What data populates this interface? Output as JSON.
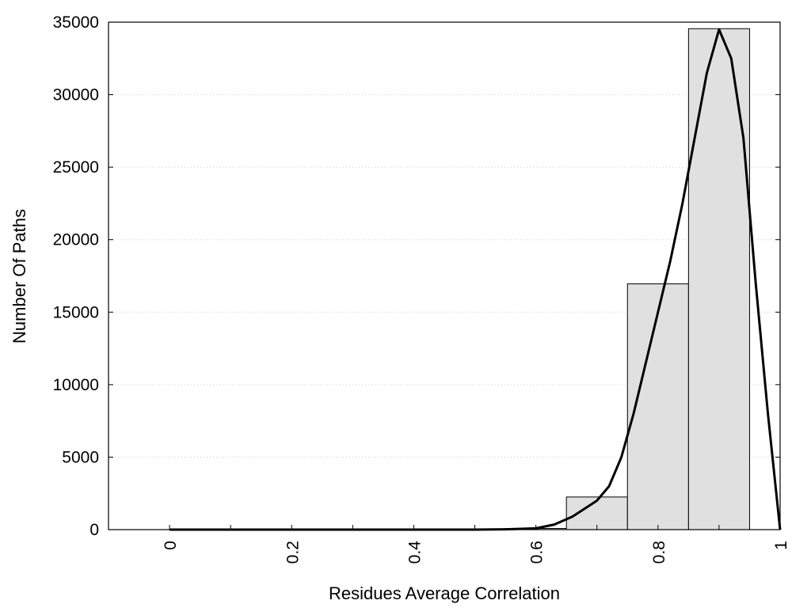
{
  "chart_data": {
    "type": "bar",
    "title": "",
    "xlabel": "Residues Average Correlation",
    "ylabel": "Number Of Paths",
    "xlim": [
      -0.1,
      1.0
    ],
    "ylim": [
      0,
      35000
    ],
    "grid": {
      "y": true,
      "x": false,
      "style": "dotted"
    },
    "x_ticks": [
      0,
      0.2,
      0.4,
      0.6,
      0.8,
      1
    ],
    "x_tick_labels": [
      "0",
      "0.2",
      "0.4",
      "0.6",
      "0.8",
      "1"
    ],
    "y_ticks": [
      0,
      5000,
      10000,
      15000,
      20000,
      25000,
      30000,
      35000
    ],
    "y_tick_labels": [
      "0",
      "5000",
      "10000",
      "15000",
      "20000",
      "25000",
      "30000",
      "35000"
    ],
    "bin_width": 0.1,
    "bins": [
      {
        "center": 0.0,
        "value": 0
      },
      {
        "center": 0.1,
        "value": 0
      },
      {
        "center": 0.2,
        "value": 0
      },
      {
        "center": 0.3,
        "value": 0
      },
      {
        "center": 0.4,
        "value": 0
      },
      {
        "center": 0.5,
        "value": 0
      },
      {
        "center": 0.6,
        "value": 80
      },
      {
        "center": 0.7,
        "value": 2250
      },
      {
        "center": 0.8,
        "value": 16950
      },
      {
        "center": 0.9,
        "value": 34550
      }
    ],
    "curve": [
      [
        0.0,
        0
      ],
      [
        0.3,
        0
      ],
      [
        0.5,
        0
      ],
      [
        0.55,
        20
      ],
      [
        0.6,
        90
      ],
      [
        0.63,
        350
      ],
      [
        0.66,
        900
      ],
      [
        0.7,
        2000
      ],
      [
        0.72,
        3000
      ],
      [
        0.74,
        5000
      ],
      [
        0.76,
        8000
      ],
      [
        0.78,
        11500
      ],
      [
        0.8,
        15000
      ],
      [
        0.82,
        18500
      ],
      [
        0.84,
        22500
      ],
      [
        0.86,
        27000
      ],
      [
        0.88,
        31500
      ],
      [
        0.9,
        34500
      ],
      [
        0.92,
        32500
      ],
      [
        0.94,
        27000
      ],
      [
        0.96,
        17000
      ],
      [
        0.98,
        8000
      ],
      [
        1.0,
        0
      ]
    ],
    "colors": {
      "bar_fill": "#e0e0e0",
      "bar_stroke": "#000000",
      "curve": "#000000",
      "grid": "#cccccc"
    }
  }
}
